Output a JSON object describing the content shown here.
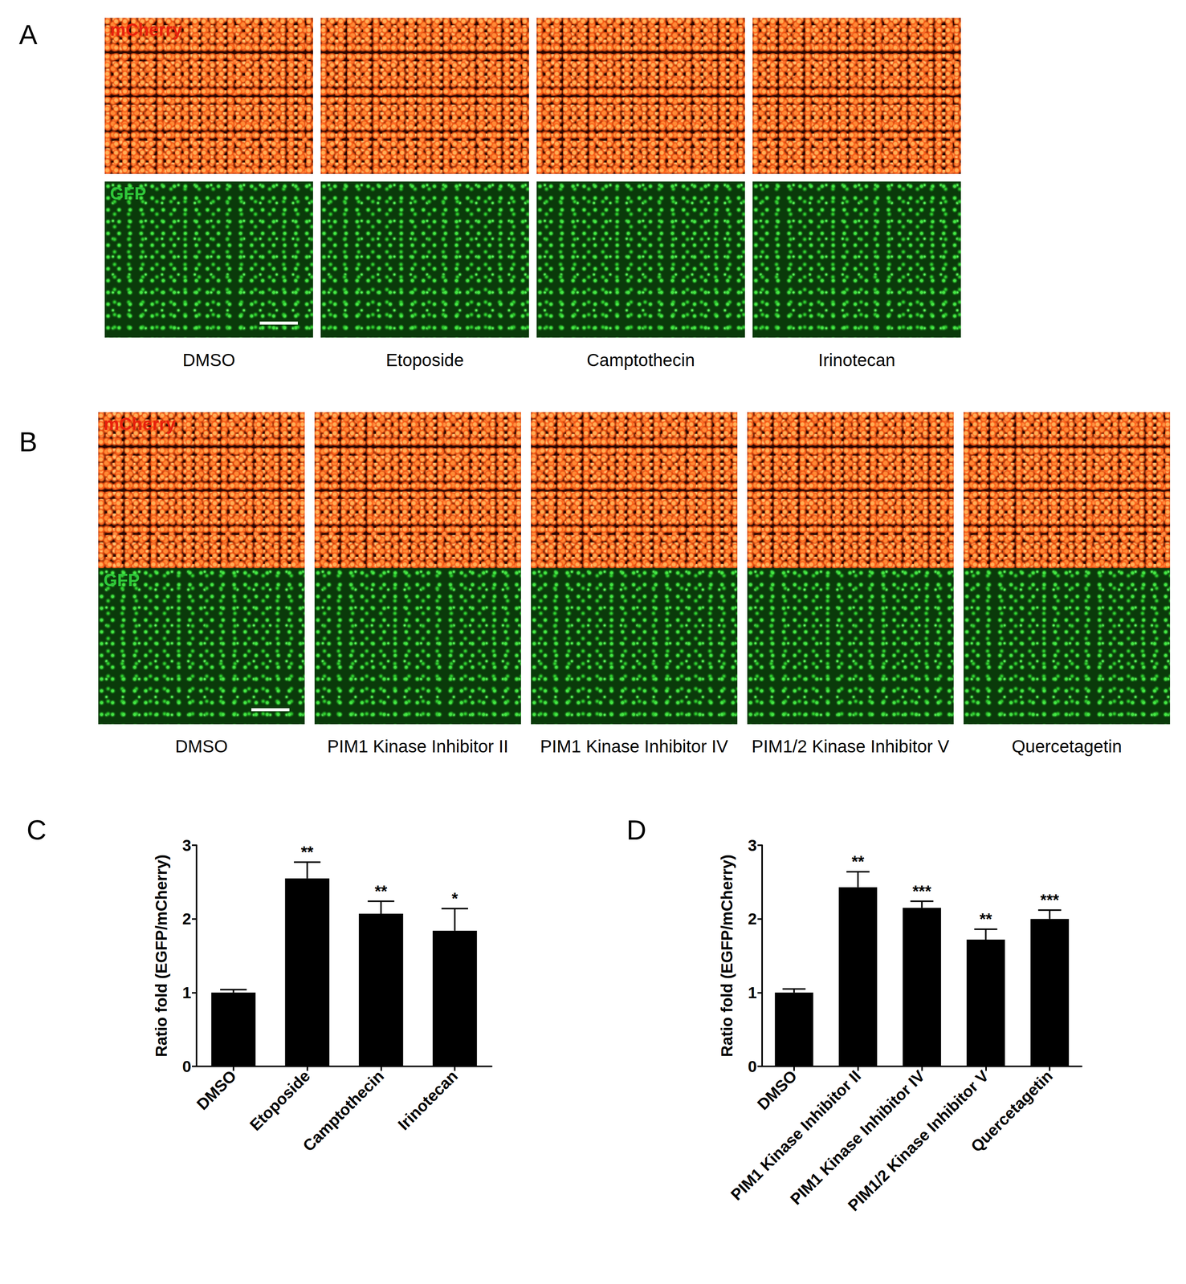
{
  "image_panels": [
    {
      "panel": "A",
      "channels": [
        "mCherry",
        "GFP"
      ],
      "conditions": [
        "DMSO",
        "Etoposide",
        "Camptothecin",
        "Irinotecan"
      ]
    },
    {
      "panel": "B",
      "channels": [
        "mCherry",
        "GFP"
      ],
      "conditions": [
        "DMSO",
        "PIM1 Kinase Inhibitor II",
        "PIM1 Kinase Inhibitor IV",
        "PIM1/2 Kinase Inhibitor V",
        "Quercetagetin"
      ]
    }
  ],
  "chart_data": [
    {
      "panel": "C",
      "type": "bar",
      "categories": [
        "DMSO",
        "Etoposide",
        "Camptothecin",
        "Irinotecan"
      ],
      "values": [
        1.0,
        2.55,
        2.07,
        1.84
      ],
      "errors": [
        0.04,
        0.22,
        0.17,
        0.3
      ],
      "annotations": [
        null,
        "**",
        "**",
        "*"
      ],
      "y_label": "Ratio fold (EGFP/mCherry)",
      "color": "#000000",
      "ylim": [
        0,
        3
      ],
      "yticks": [
        0,
        1,
        2,
        3
      ],
      "grid": false
    },
    {
      "panel": "D",
      "type": "bar",
      "categories": [
        "DMSO",
        "PIM1 Kinase Inhibitor II",
        "PIM1 Kinase Inhibitor IV",
        "PIM1/2 Kinase Inhibitor V",
        "Quercetagetin"
      ],
      "values": [
        1.0,
        2.43,
        2.15,
        1.72,
        2.0
      ],
      "errors": [
        0.05,
        0.21,
        0.09,
        0.14,
        0.12
      ],
      "annotations": [
        null,
        "**",
        "***",
        "**",
        "***"
      ],
      "y_label": "Ratio fold (EGFP/mCherry)",
      "color": "#000000",
      "ylim": [
        0,
        3
      ],
      "yticks": [
        0,
        1,
        2,
        3
      ],
      "grid": false
    }
  ]
}
